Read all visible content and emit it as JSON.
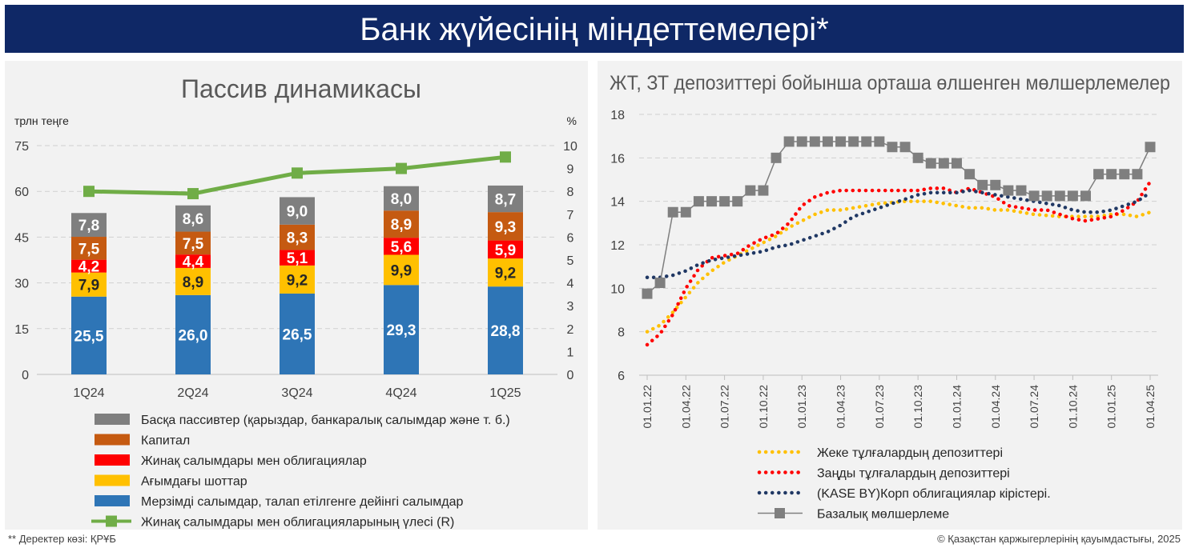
{
  "header": {
    "title": "Банк жүйесінің міндеттемелері*"
  },
  "footer": {
    "source": "**   Деректер көзі: ҚРҰБ",
    "copyright": "©  Қазақстан қаржыгерлерінің қауымдастығы, 2025"
  },
  "colors": {
    "banner": "#0f2866",
    "panel_bg": "#f2f2f2",
    "gray": "#7f7f7f",
    "orange": "#c55a11",
    "red": "#ff0000",
    "yellow": "#ffc000",
    "blue": "#2e75b6",
    "green": "#70ad47",
    "navy": "#203864",
    "series_gray": "#7f7f7f"
  },
  "chart_data": [
    {
      "type": "bar",
      "title": "Пассив динамикасы",
      "ylabel": "трлн теңге",
      "y2label": "%",
      "ylim": [
        0,
        75
      ],
      "y_ticks": [
        "0",
        "15",
        "30",
        "45",
        "60",
        "75"
      ],
      "y2lim": [
        0,
        10
      ],
      "y2_ticks": [
        "0",
        "1",
        "2",
        "3",
        "4",
        "5",
        "6",
        "7",
        "8",
        "9",
        "10"
      ],
      "categories": [
        "1Q24",
        "2Q24",
        "3Q24",
        "4Q24",
        "1Q25"
      ],
      "stacked": true,
      "grid": true,
      "legend_position": "bottom",
      "series": [
        {
          "name": "Мерзімді салымдар, талап етілгенге дейінгі салымдар",
          "color": "#2e75b6",
          "values": [
            25.5,
            26.0,
            26.5,
            29.3,
            28.8
          ],
          "labels": [
            "25,5",
            "26,0",
            "26,5",
            "29,3",
            "28,8"
          ]
        },
        {
          "name": "Ағымдағы шоттар",
          "color": "#ffc000",
          "values": [
            7.9,
            8.9,
            9.2,
            9.9,
            9.2
          ],
          "labels": [
            "7,9",
            "8,9",
            "9,2",
            "9,9",
            "9,2"
          ]
        },
        {
          "name": "Жинақ салымдары мен облигациялар",
          "color": "#ff0000",
          "values": [
            4.2,
            4.4,
            5.1,
            5.6,
            5.9
          ],
          "labels": [
            "4,2",
            "4,4",
            "5,1",
            "5,6",
            "5,9"
          ]
        },
        {
          "name": "Капитал",
          "color": "#c55a11",
          "values": [
            7.5,
            7.5,
            8.3,
            8.9,
            9.3
          ],
          "labels": [
            "7,5",
            "7,5",
            "8,3",
            "8,9",
            "9,3"
          ]
        },
        {
          "name": "Басқа пассивтер (қарыздар, банкаралық салымдар және т. б.)",
          "color": "#7f7f7f",
          "values": [
            7.8,
            8.6,
            9.0,
            8.0,
            8.7
          ],
          "labels": [
            "7,8",
            "8,6",
            "9,0",
            "8,0",
            "8,7"
          ]
        }
      ],
      "line_series": {
        "name": "Жинақ салымдары мен облигацияларының үлесі (R)",
        "color": "#70ad47",
        "values": [
          8.0,
          7.9,
          8.8,
          9.0,
          9.5
        ]
      },
      "legend_order": [
        "Басқа пассивтер (қарыздар, банкаралық салымдар және т. б.)",
        "Капитал",
        "Жинақ салымдары мен облигациялар",
        "Ағымдағы шоттар",
        "Мерзімді салымдар, талап етілгенге дейінгі салымдар",
        "Жинақ салымдары мен облигацияларының үлесі (R)"
      ]
    },
    {
      "type": "line",
      "title": "ЖТ, ЗТ депозиттері бойынша орташа өлшенген мөлшерлемелер",
      "ylim": [
        6,
        18
      ],
      "y_ticks": [
        "6",
        "8",
        "10",
        "12",
        "14",
        "16",
        "18"
      ],
      "x_start": "01.01.22",
      "x_ticks": [
        "01.01.22",
        "01.04.22",
        "01.07.22",
        "01.10.22",
        "01.01.23",
        "01.04.23",
        "01.07.23",
        "01.10.23",
        "01.01.24",
        "01.04.24",
        "01.07.24",
        "01.10.24",
        "01.01.25",
        "01.04.25"
      ],
      "grid": true,
      "legend_position": "bottom",
      "series": [
        {
          "name": "Жеке тұлғалардың депозиттері",
          "color": "#ffc000",
          "style": "dotted",
          "values": [
            8.0,
            8.3,
            8.9,
            9.6,
            10.3,
            10.8,
            11.2,
            11.5,
            11.8,
            12.1,
            12.4,
            12.8,
            13.1,
            13.4,
            13.6,
            13.6,
            13.7,
            13.8,
            13.9,
            13.95,
            14.0,
            14.0,
            14.0,
            13.9,
            13.8,
            13.7,
            13.7,
            13.6,
            13.6,
            13.5,
            13.4,
            13.35,
            13.3,
            13.3,
            13.3,
            13.3,
            13.4,
            13.4,
            13.3,
            13.5
          ]
        },
        {
          "name": "Заңды тұлғалардың депозиттері",
          "color": "#ff0000",
          "style": "dotted",
          "values": [
            7.4,
            7.9,
            8.8,
            10.0,
            10.9,
            11.4,
            11.5,
            11.6,
            12.0,
            12.3,
            12.5,
            13.0,
            13.8,
            14.2,
            14.4,
            14.5,
            14.5,
            14.5,
            14.5,
            14.5,
            14.5,
            14.5,
            14.6,
            14.6,
            14.4,
            14.6,
            14.4,
            14.2,
            13.8,
            13.7,
            13.6,
            13.6,
            13.4,
            13.2,
            13.1,
            13.2,
            13.3,
            13.6,
            14.0,
            14.9
          ]
        },
        {
          "name": "(KASE BY)Корп облигациялар кірістері.",
          "color": "#203864",
          "style": "dotted",
          "values": [
            10.5,
            10.5,
            10.6,
            10.8,
            11.1,
            11.3,
            11.4,
            11.5,
            11.6,
            11.7,
            11.9,
            12.0,
            12.2,
            12.4,
            12.6,
            12.9,
            13.3,
            13.5,
            13.7,
            13.9,
            14.1,
            14.3,
            14.4,
            14.4,
            14.4,
            14.5,
            14.4,
            14.3,
            14.2,
            14.1,
            14.0,
            13.9,
            13.8,
            13.6,
            13.5,
            13.5,
            13.6,
            13.8,
            14.0,
            14.4
          ]
        },
        {
          "name": "Базалық мөлшерлеме",
          "color": "#7f7f7f",
          "style": "step-square-markers",
          "points": [
            {
              "x": "01.01.22",
              "y": 9.75
            },
            {
              "x": "01.02.22",
              "y": 10.25
            },
            {
              "x": "01.03.22",
              "y": 13.5
            },
            {
              "x": "01.04.22",
              "y": 13.5
            },
            {
              "x": "01.05.22",
              "y": 14.0
            },
            {
              "x": "01.06.22",
              "y": 14.0
            },
            {
              "x": "01.07.22",
              "y": 14.0
            },
            {
              "x": "01.08.22",
              "y": 14.0
            },
            {
              "x": "01.09.22",
              "y": 14.5
            },
            {
              "x": "01.10.22",
              "y": 14.5
            },
            {
              "x": "01.11.22",
              "y": 16.0
            },
            {
              "x": "01.12.22",
              "y": 16.75
            },
            {
              "x": "01.01.23",
              "y": 16.75
            },
            {
              "x": "01.02.23",
              "y": 16.75
            },
            {
              "x": "01.03.23",
              "y": 16.75
            },
            {
              "x": "01.04.23",
              "y": 16.75
            },
            {
              "x": "01.05.23",
              "y": 16.75
            },
            {
              "x": "01.06.23",
              "y": 16.75
            },
            {
              "x": "01.07.23",
              "y": 16.75
            },
            {
              "x": "01.08.23",
              "y": 16.5
            },
            {
              "x": "01.09.23",
              "y": 16.5
            },
            {
              "x": "01.10.23",
              "y": 16.0
            },
            {
              "x": "01.11.23",
              "y": 15.75
            },
            {
              "x": "01.12.23",
              "y": 15.75
            },
            {
              "x": "01.01.24",
              "y": 15.75
            },
            {
              "x": "01.02.24",
              "y": 15.25
            },
            {
              "x": "01.03.24",
              "y": 14.75
            },
            {
              "x": "01.04.24",
              "y": 14.75
            },
            {
              "x": "01.05.24",
              "y": 14.5
            },
            {
              "x": "01.06.24",
              "y": 14.5
            },
            {
              "x": "01.07.24",
              "y": 14.25
            },
            {
              "x": "01.08.24",
              "y": 14.25
            },
            {
              "x": "01.09.24",
              "y": 14.25
            },
            {
              "x": "01.10.24",
              "y": 14.25
            },
            {
              "x": "01.11.24",
              "y": 14.25
            },
            {
              "x": "01.12.24",
              "y": 15.25
            },
            {
              "x": "01.01.25",
              "y": 15.25
            },
            {
              "x": "01.02.25",
              "y": 15.25
            },
            {
              "x": "01.03.25",
              "y": 15.25
            },
            {
              "x": "01.04.25",
              "y": 16.5
            }
          ]
        }
      ]
    }
  ]
}
